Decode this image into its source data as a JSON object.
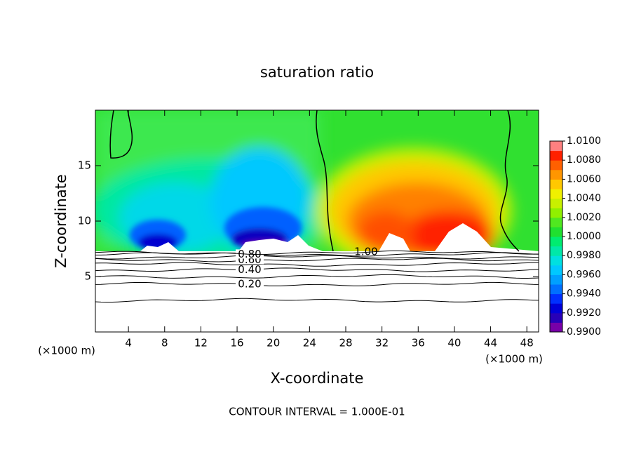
{
  "chart_data": {
    "type": "contour",
    "title": "saturation ratio",
    "xlabel": "X-coordinate",
    "ylabel": "Z-coordinate",
    "x_unit": "(×1000 m)",
    "footer": "CONTOUR INTERVAL = 1.000E-01",
    "xlim": [
      0.35,
      49.3
    ],
    "ylim": [
      0,
      20
    ],
    "xticks": [
      4,
      8,
      12,
      16,
      20,
      24,
      28,
      32,
      36,
      40,
      44,
      48
    ],
    "yticks": [
      5,
      10,
      15
    ],
    "contours": [
      {
        "value": 0.1,
        "z": 2.85
      },
      {
        "value": 0.2,
        "label": "0.20",
        "z": 4.3
      },
      {
        "value": 0.3,
        "z": 5.0
      },
      {
        "value": 0.4,
        "label": "0.40",
        "z": 5.6
      },
      {
        "value": 0.5,
        "z": 6.1
      },
      {
        "value": 0.6,
        "label": "0.60",
        "z": 6.5
      },
      {
        "value": 0.7,
        "z": 6.75
      },
      {
        "value": 0.8,
        "label": "0.80",
        "z": 7.0
      },
      {
        "value": 0.9,
        "z": 7.15
      }
    ],
    "contour_top_label": "1.00",
    "colorbar": {
      "clim": [
        0.99,
        1.01
      ],
      "ticks": [
        {
          "value": 0.99,
          "label": "0.9900"
        },
        {
          "value": 0.992,
          "label": "0.9920"
        },
        {
          "value": 0.994,
          "label": "0.9940"
        },
        {
          "value": 0.996,
          "label": "0.9960"
        },
        {
          "value": 0.998,
          "label": "0.9980"
        },
        {
          "value": 1.0,
          "label": "1.0000"
        },
        {
          "value": 1.002,
          "label": "1.0020"
        },
        {
          "value": 1.004,
          "label": "1.0040"
        },
        {
          "value": 1.006,
          "label": "1.0060"
        },
        {
          "value": 1.008,
          "label": "1.0080"
        },
        {
          "value": 1.01,
          "label": "1.0100"
        }
      ],
      "colors": [
        "#7800a8",
        "#2800b8",
        "#0000d8",
        "#0030ff",
        "#0070ff",
        "#00a0ff",
        "#00c8ff",
        "#00e0e0",
        "#00e8a8",
        "#00ec70",
        "#20e030",
        "#50e820",
        "#90f000",
        "#c8f000",
        "#f0f000",
        "#ffc800",
        "#ff9600",
        "#ff6000",
        "#ff2000",
        "#ff8080"
      ]
    }
  }
}
